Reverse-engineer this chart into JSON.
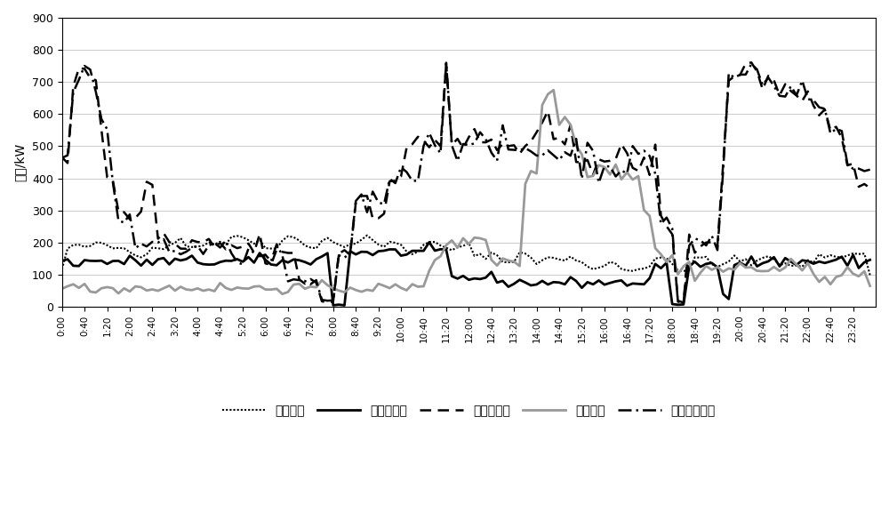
{
  "title": "",
  "ylabel": "功率/kW",
  "ylim": [
    0,
    900
  ],
  "yticks": [
    0,
    100,
    200,
    300,
    400,
    500,
    600,
    700,
    800,
    900
  ],
  "background_color": "#ffffff",
  "legend_labels": [
    "重要负荷",
    "可中断负荷",
    "可转移负荷",
    "一般负荷",
    "电动汽车负荷"
  ],
  "line_styles": [
    "dotted",
    "solid",
    "dashed",
    "solid",
    "dashdot"
  ],
  "line_colors": [
    "#000000",
    "#000000",
    "#000000",
    "#999999",
    "#000000"
  ],
  "line_widths": [
    1.5,
    2.0,
    1.8,
    2.0,
    1.8
  ],
  "time_labels": [
    "0:00",
    "0:40",
    "1:20",
    "2:00",
    "2:40",
    "3:20",
    "4:00",
    "4:40",
    "5:20",
    "6:00",
    "6:40",
    "7:20",
    "8:00",
    "8:40",
    "9:20",
    "10:00",
    "10:40",
    "11:20",
    "12:00",
    "12:40",
    "13:20",
    "14:00",
    "14:40",
    "15:20",
    "16:00",
    "16:40",
    "17:20",
    "18:00",
    "18:40",
    "19:20",
    "20:00",
    "20:40",
    "21:20",
    "22:00",
    "22:40",
    "23:20"
  ]
}
